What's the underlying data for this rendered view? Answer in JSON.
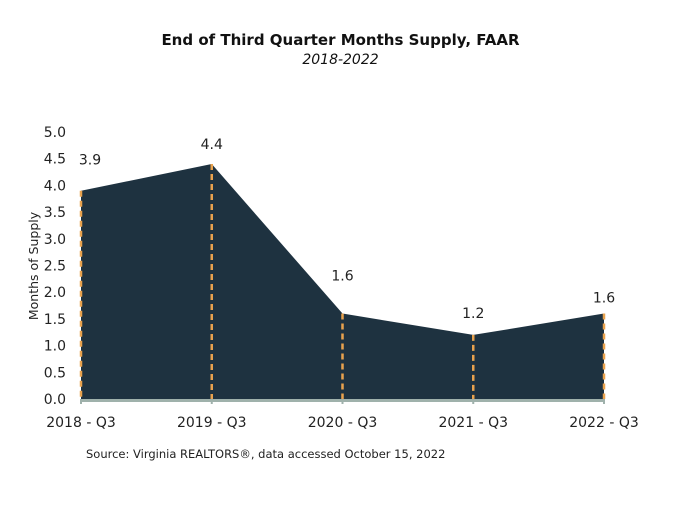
{
  "chart_data": {
    "type": "area",
    "title": "End of Third Quarter Months Supply, FAAR",
    "subtitle": "2018-2022",
    "xlabel": "",
    "ylabel": "Months of Supply",
    "categories": [
      "2018 - Q3",
      "2019 - Q3",
      "2020 - Q3",
      "2021 - Q3",
      "2022 - Q3"
    ],
    "values": [
      3.9,
      4.4,
      1.6,
      1.2,
      1.6
    ],
    "data_labels": [
      "3.9",
      "4.4",
      "1.6",
      "1.2",
      "1.6"
    ],
    "ylim": [
      0,
      5
    ],
    "yticks": [
      "0.0",
      "0.5",
      "1.0",
      "1.5",
      "2.0",
      "2.5",
      "3.0",
      "3.5",
      "4.0",
      "4.5",
      "5.0"
    ],
    "grid": false,
    "legend": "none",
    "colors": {
      "area": "#1e3240",
      "drop_lines": "#e8a24e",
      "axis": "#9fb1ab"
    }
  },
  "source": "Source: Virginia REALTORS®, data accessed October 15, 2022"
}
